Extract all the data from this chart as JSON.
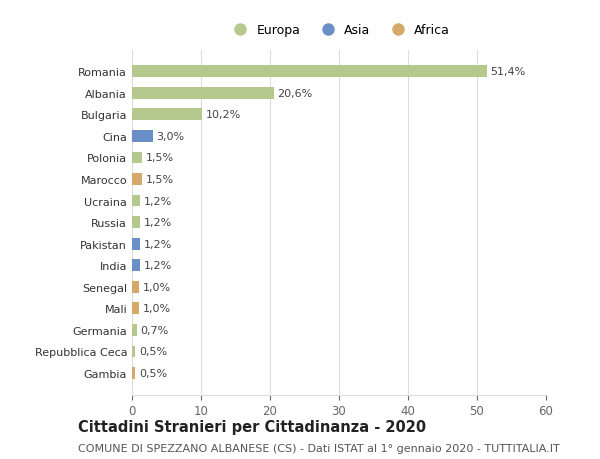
{
  "countries": [
    "Romania",
    "Albania",
    "Bulgaria",
    "Cina",
    "Polonia",
    "Marocco",
    "Ucraina",
    "Russia",
    "Pakistan",
    "India",
    "Senegal",
    "Mali",
    "Germania",
    "Repubblica Ceca",
    "Gambia"
  ],
  "values": [
    51.4,
    20.6,
    10.2,
    3.0,
    1.5,
    1.5,
    1.2,
    1.2,
    1.2,
    1.2,
    1.0,
    1.0,
    0.7,
    0.5,
    0.5
  ],
  "labels": [
    "51,4%",
    "20,6%",
    "10,2%",
    "3,0%",
    "1,5%",
    "1,5%",
    "1,2%",
    "1,2%",
    "1,2%",
    "1,2%",
    "1,0%",
    "1,0%",
    "0,7%",
    "0,5%",
    "0,5%"
  ],
  "continents": [
    "Europa",
    "Europa",
    "Europa",
    "Asia",
    "Europa",
    "Africa",
    "Europa",
    "Europa",
    "Asia",
    "Asia",
    "Africa",
    "Africa",
    "Europa",
    "Europa",
    "Africa"
  ],
  "colors": {
    "Europa": "#b5c98e",
    "Asia": "#6a8fc7",
    "Africa": "#d4a96a"
  },
  "xlim": [
    0,
    60
  ],
  "xticks": [
    0,
    10,
    20,
    30,
    40,
    50,
    60
  ],
  "title": "Cittadini Stranieri per Cittadinanza - 2020",
  "subtitle": "COMUNE DI SPEZZANO ALBANESE (CS) - Dati ISTAT al 1° gennaio 2020 - TUTTITALIA.IT",
  "background_color": "#ffffff",
  "grid_color": "#dddddd",
  "bar_height": 0.55,
  "label_fontsize": 8.0,
  "title_fontsize": 10.5,
  "subtitle_fontsize": 8.0,
  "ytick_fontsize": 8.0,
  "xtick_fontsize": 8.5,
  "legend_markersize": 10,
  "legend_fontsize": 9.0
}
